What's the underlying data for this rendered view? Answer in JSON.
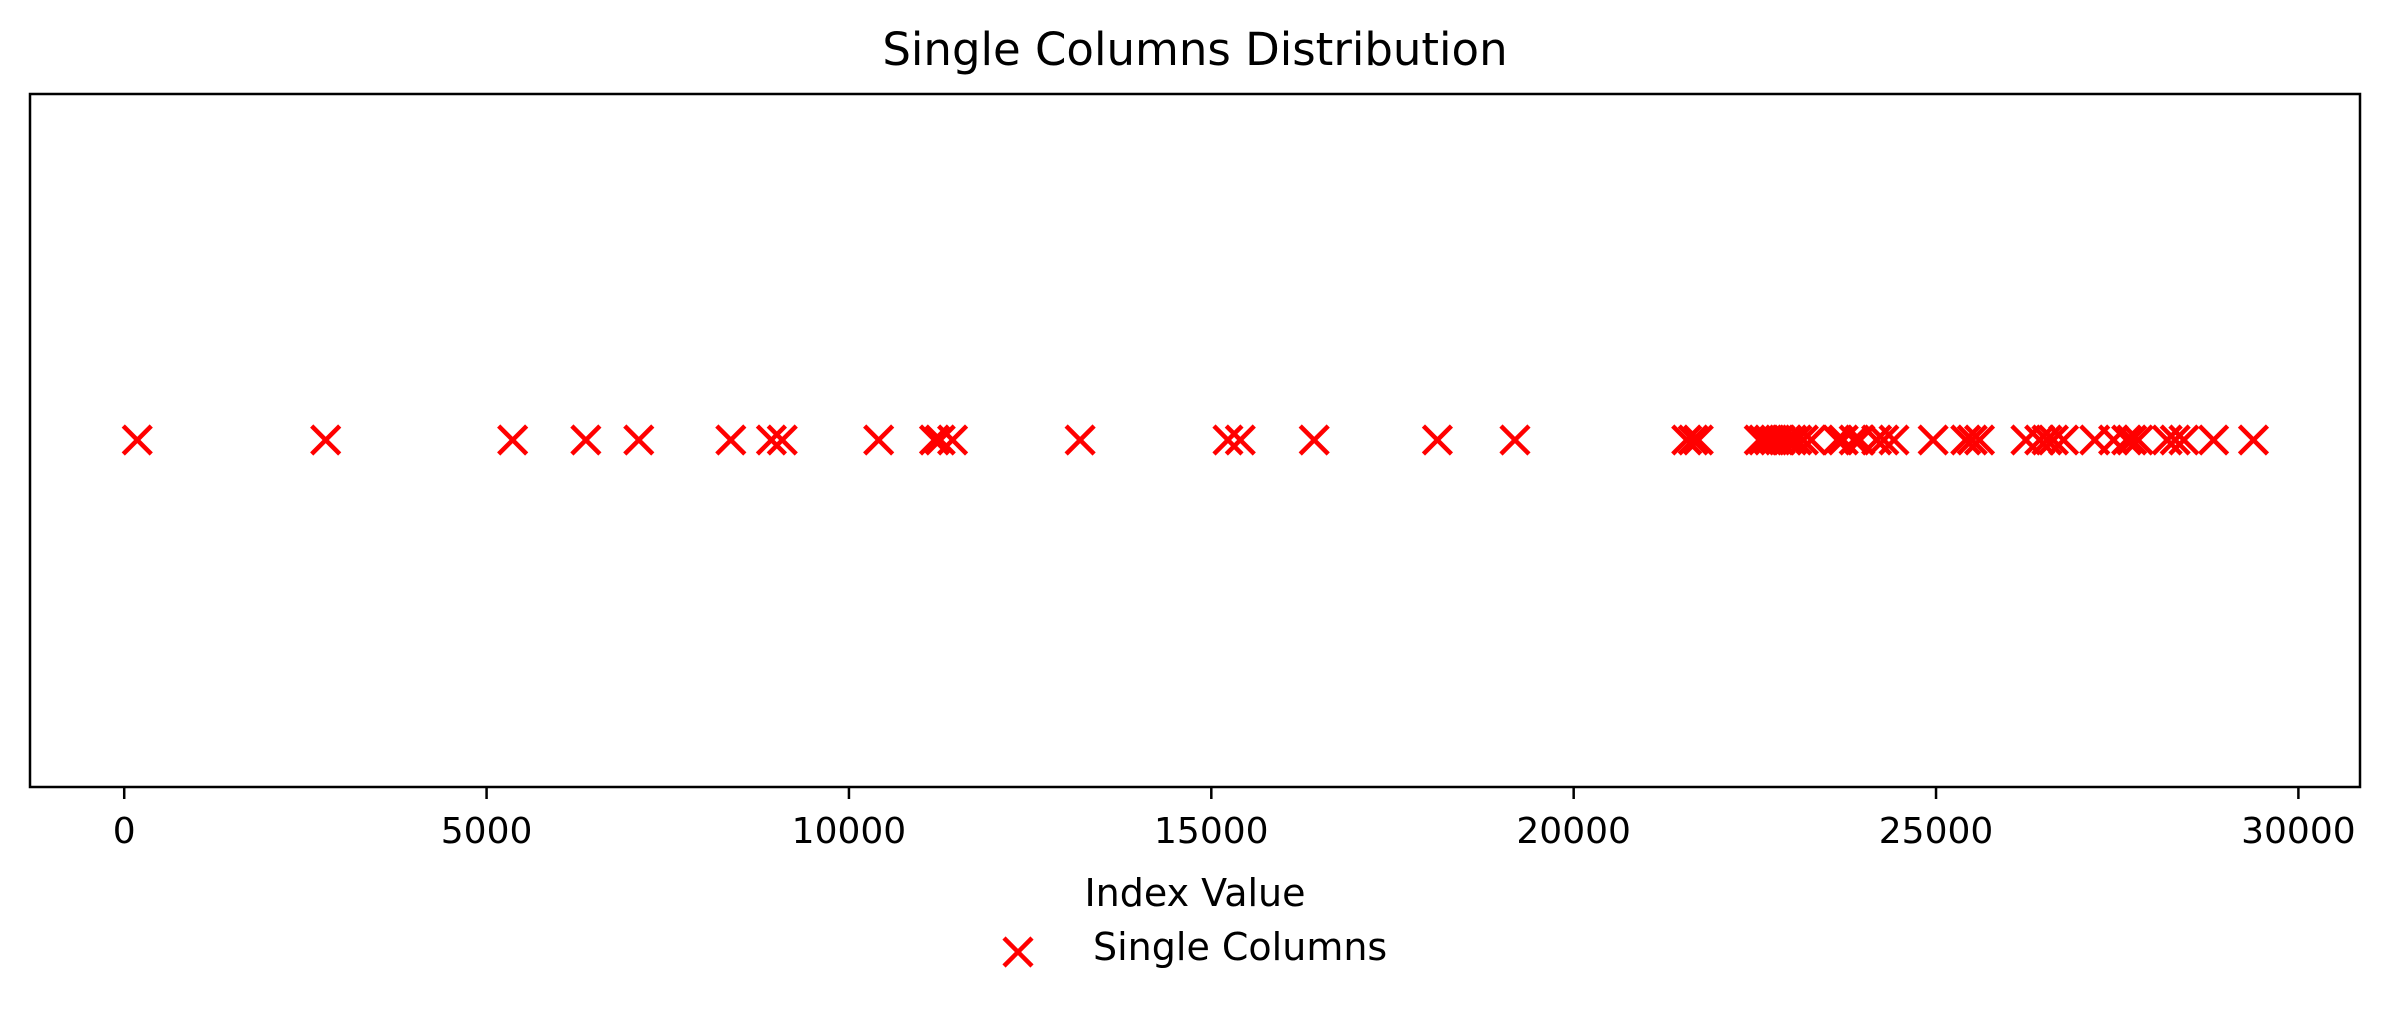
{
  "chart_data": {
    "type": "scatter",
    "title": "Single Columns Distribution",
    "xlabel": "Index Value",
    "ylabel": "",
    "xlim": [
      -1300,
      30850
    ],
    "x_ticks": [
      0,
      5000,
      10000,
      15000,
      20000,
      25000,
      30000
    ],
    "x_tick_labels": [
      "0",
      "5000",
      "10000",
      "15000",
      "20000",
      "25000",
      "30000"
    ],
    "y_ticks_visible": false,
    "grid": false,
    "legend_position": "bottom-center",
    "series": [
      {
        "name": "Single Columns",
        "marker": "x",
        "color": "#ff0000",
        "y_constant": 1,
        "x": [
          180,
          2780,
          5360,
          6370,
          7100,
          8370,
          8930,
          9080,
          10410,
          11180,
          11260,
          11430,
          13190,
          15230,
          15400,
          16420,
          18120,
          19190,
          21560,
          21650,
          21720,
          22560,
          22620,
          22700,
          22780,
          22850,
          22940,
          23010,
          23080,
          23170,
          23280,
          23640,
          23720,
          23870,
          23950,
          24180,
          24280,
          24420,
          24960,
          25410,
          25500,
          25600,
          26240,
          26430,
          26530,
          26620,
          26760,
          27190,
          27450,
          27630,
          27700,
          27790,
          28190,
          28300,
          28420,
          28830,
          29380
        ]
      }
    ]
  }
}
